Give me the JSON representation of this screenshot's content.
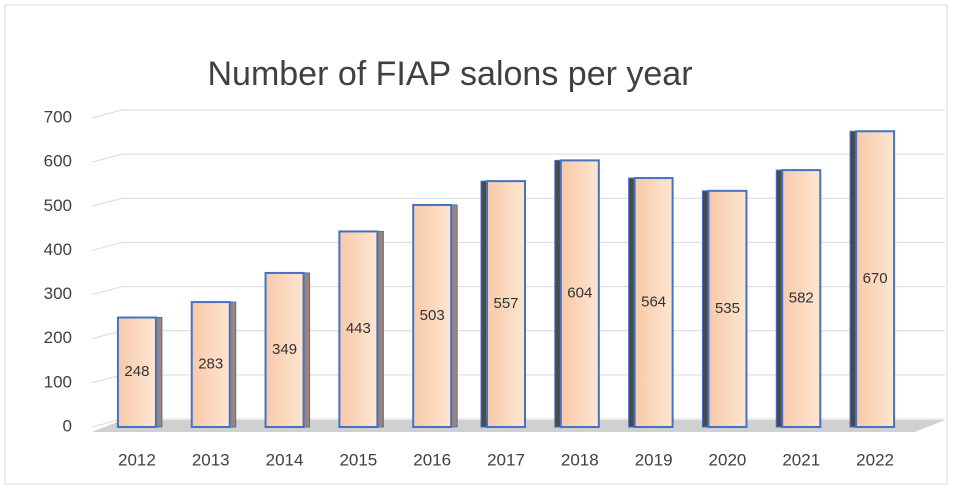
{
  "chart_data": {
    "type": "bar",
    "title": "Number of FIAP salons per year",
    "categories": [
      "2012",
      "2013",
      "2014",
      "2015",
      "2016",
      "2017",
      "2018",
      "2019",
      "2020",
      "2021",
      "2022"
    ],
    "values": [
      248,
      283,
      349,
      443,
      503,
      557,
      604,
      564,
      535,
      582,
      670
    ],
    "color": "#f8cbad",
    "ylim": [
      0,
      700
    ],
    "yticks": [
      0,
      100,
      200,
      300,
      400,
      500,
      600,
      700
    ],
    "grid": true
  }
}
